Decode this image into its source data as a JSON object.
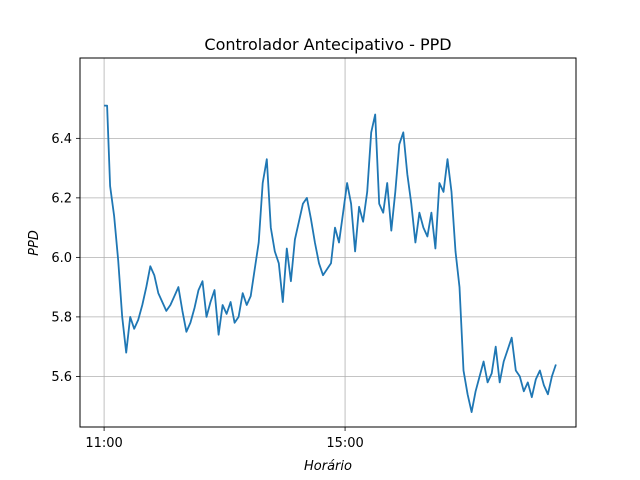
{
  "chart_data": {
    "type": "line",
    "title": "Controlador Antecipativo - PPD",
    "xlabel": "Horário",
    "ylabel": "PPD",
    "x_ticks": [
      {
        "value": 660,
        "label": "11:00"
      },
      {
        "value": 900,
        "label": "15:00"
      }
    ],
    "y_ticks": [
      {
        "value": 5.6,
        "label": "5.6"
      },
      {
        "value": 5.8,
        "label": "5.8"
      },
      {
        "value": 6.0,
        "label": "6.0"
      },
      {
        "value": 6.2,
        "label": "6.2"
      },
      {
        "value": 6.4,
        "label": "6.4"
      }
    ],
    "xlim": [
      636,
      1130
    ],
    "ylim": [
      5.43,
      6.67
    ],
    "grid": true,
    "line_color": "#1f77b4",
    "series": [
      {
        "x": [
          660,
          663,
          666,
          670,
          674,
          678,
          682,
          686,
          690,
          694,
          698,
          702,
          706,
          710,
          714,
          718,
          722,
          726,
          730,
          734,
          738,
          742,
          746,
          750,
          754,
          758,
          762,
          766,
          770,
          774,
          778,
          782,
          786,
          790,
          794,
          798,
          802,
          806,
          810,
          814,
          818,
          822,
          826,
          830,
          834,
          838,
          842,
          846,
          850,
          854,
          858,
          862,
          866,
          870,
          874,
          878,
          882,
          886,
          890,
          894,
          898,
          902,
          906,
          910,
          914,
          918,
          922,
          926,
          930,
          934,
          938,
          942,
          946,
          950,
          954,
          958,
          962,
          966,
          970,
          974,
          978,
          982,
          986,
          990,
          994,
          998,
          1002,
          1006,
          1010,
          1014,
          1018,
          1022,
          1026,
          1030,
          1034,
          1038,
          1042,
          1046,
          1050,
          1054,
          1058,
          1062,
          1066,
          1070,
          1074,
          1078,
          1082,
          1086,
          1090,
          1094,
          1098,
          1102,
          1106,
          1110
        ],
        "y": [
          6.51,
          6.51,
          6.24,
          6.14,
          5.99,
          5.8,
          5.68,
          5.8,
          5.76,
          5.79,
          5.84,
          5.9,
          5.97,
          5.94,
          5.88,
          5.85,
          5.82,
          5.84,
          5.87,
          5.9,
          5.82,
          5.75,
          5.78,
          5.83,
          5.89,
          5.92,
          5.8,
          5.85,
          5.89,
          5.74,
          5.84,
          5.81,
          5.85,
          5.78,
          5.8,
          5.88,
          5.84,
          5.87,
          5.96,
          6.05,
          6.25,
          6.33,
          6.1,
          6.02,
          5.98,
          5.85,
          6.03,
          5.92,
          6.06,
          6.12,
          6.18,
          6.2,
          6.13,
          6.05,
          5.98,
          5.94,
          5.96,
          5.98,
          6.1,
          6.05,
          6.15,
          6.25,
          6.18,
          6.02,
          6.17,
          6.12,
          6.22,
          6.42,
          6.48,
          6.18,
          6.15,
          6.25,
          6.09,
          6.22,
          6.38,
          6.42,
          6.28,
          6.18,
          6.05,
          6.15,
          6.1,
          6.07,
          6.15,
          6.03,
          6.25,
          6.22,
          6.33,
          6.22,
          6.02,
          5.9,
          5.62,
          5.54,
          5.48,
          5.55,
          5.6,
          5.65,
          5.58,
          5.61,
          5.7,
          5.58,
          5.65,
          5.69,
          5.73,
          5.62,
          5.6,
          5.55,
          5.58,
          5.53,
          5.59,
          5.62,
          5.57,
          5.54,
          5.6,
          5.64
        ]
      }
    ]
  }
}
